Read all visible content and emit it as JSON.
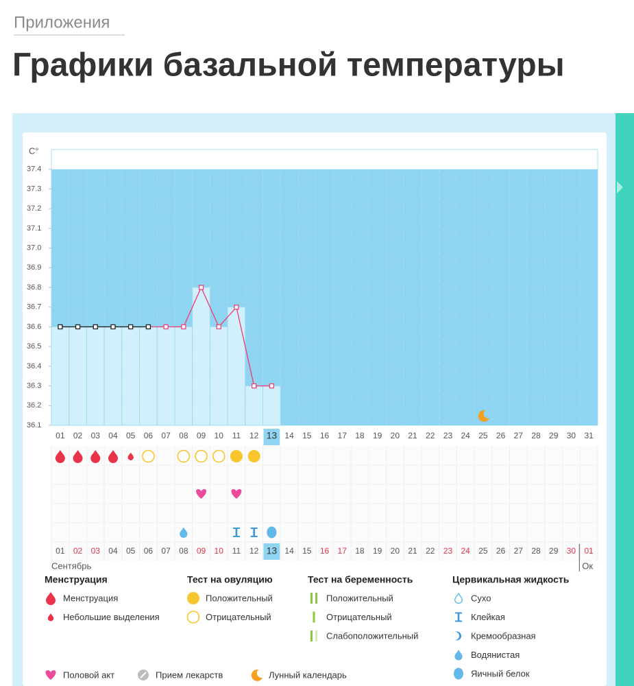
{
  "breadcrumb": "Приложения",
  "title": "Графики базальной температуры",
  "chart_data": {
    "type": "line",
    "y_unit": "C°",
    "categories": [
      "01",
      "02",
      "03",
      "04",
      "05",
      "06",
      "07",
      "08",
      "09",
      "10",
      "11",
      "12",
      "13",
      "14",
      "15",
      "16",
      "17",
      "18",
      "19",
      "20",
      "21",
      "22",
      "23",
      "24",
      "25",
      "26",
      "27",
      "28",
      "29",
      "30",
      "31"
    ],
    "values": [
      36.6,
      36.6,
      36.6,
      36.6,
      36.6,
      36.6,
      36.6,
      36.6,
      36.8,
      36.6,
      36.7,
      36.3,
      36.3,
      null,
      null,
      null,
      null,
      null,
      null,
      null,
      null,
      null,
      null,
      null,
      null,
      null,
      null,
      null,
      null,
      null,
      null
    ],
    "color": "#e8457a",
    "point_colors": [
      "#222222",
      "#222222",
      "#222222",
      "#222222",
      "#222222",
      "#222222",
      "#e8457a",
      "#e8457a",
      "#e8457a",
      "#e8457a",
      "#e8457a",
      "#e8457a",
      "#e8457a",
      null,
      null,
      null,
      null,
      null,
      null,
      null,
      null,
      null,
      null,
      null,
      null,
      null,
      null,
      null,
      null,
      null,
      null
    ],
    "ylim": [
      36.1,
      37.5
    ],
    "yticks": [
      36.1,
      36.2,
      36.3,
      36.4,
      36.5,
      36.6,
      36.7,
      36.8,
      36.9,
      {
        "value": 37,
        "label": "37.0"
      },
      37.1,
      37.2,
      37.3,
      37.4
    ],
    "grid": false,
    "today_index": 12,
    "rows": {
      "menstruation": [
        "drop",
        "drop",
        "drop",
        "drop",
        "small-drop",
        null,
        null,
        null,
        null,
        null,
        null,
        null,
        null,
        null,
        null,
        null,
        null,
        null,
        null,
        null,
        null,
        null,
        null,
        null,
        null,
        null,
        null,
        null,
        null,
        null,
        null
      ],
      "ovulation_test": [
        null,
        null,
        null,
        null,
        null,
        "circle-outline",
        null,
        "circle-outline",
        "circle-outline",
        "circle-outline",
        "circle-fill",
        "circle-fill",
        null,
        null,
        null,
        null,
        null,
        null,
        null,
        null,
        null,
        null,
        null,
        null,
        null,
        null,
        null,
        null,
        null,
        null,
        null
      ],
      "intercourse": [
        null,
        null,
        null,
        null,
        null,
        null,
        null,
        null,
        "heart",
        null,
        "heart",
        null,
        null,
        null,
        null,
        null,
        null,
        null,
        null,
        null,
        null,
        null,
        null,
        null,
        null,
        null,
        null,
        null,
        null,
        null,
        null
      ],
      "cervical_fluid": [
        null,
        null,
        null,
        null,
        null,
        null,
        null,
        "watery",
        null,
        null,
        "sticky",
        "sticky",
        "egg-white",
        null,
        null,
        null,
        null,
        null,
        null,
        null,
        null,
        null,
        null,
        null,
        null,
        null,
        null,
        null,
        null,
        null,
        null
      ],
      "lunar": [
        null,
        null,
        null,
        null,
        null,
        null,
        null,
        null,
        null,
        null,
        null,
        null,
        null,
        null,
        null,
        null,
        null,
        null,
        null,
        null,
        null,
        null,
        null,
        null,
        "moon",
        null,
        null,
        null,
        null,
        null,
        null
      ]
    },
    "bottom_days": [
      {
        "label": "01",
        "holiday": false
      },
      {
        "label": "02",
        "holiday": true
      },
      {
        "label": "03",
        "holiday": true
      },
      {
        "label": "04",
        "holiday": false
      },
      {
        "label": "05",
        "holiday": false
      },
      {
        "label": "06",
        "holiday": false
      },
      {
        "label": "07",
        "holiday": false
      },
      {
        "label": "08",
        "holiday": false
      },
      {
        "label": "09",
        "holiday": true
      },
      {
        "label": "10",
        "holiday": true
      },
      {
        "label": "11",
        "holiday": false
      },
      {
        "label": "12",
        "holiday": false
      },
      {
        "label": "13",
        "holiday": false
      },
      {
        "label": "14",
        "holiday": false
      },
      {
        "label": "15",
        "holiday": false
      },
      {
        "label": "16",
        "holiday": true
      },
      {
        "label": "17",
        "holiday": true
      },
      {
        "label": "18",
        "holiday": false
      },
      {
        "label": "19",
        "holiday": false
      },
      {
        "label": "20",
        "holiday": false
      },
      {
        "label": "21",
        "holiday": false
      },
      {
        "label": "22",
        "holiday": false
      },
      {
        "label": "23",
        "holiday": true
      },
      {
        "label": "24",
        "holiday": true
      },
      {
        "label": "25",
        "holiday": false
      },
      {
        "label": "26",
        "holiday": false
      },
      {
        "label": "27",
        "holiday": false
      },
      {
        "label": "28",
        "holiday": false
      },
      {
        "label": "29",
        "holiday": false
      },
      {
        "label": "30",
        "holiday": true
      },
      {
        "label": "01",
        "holiday": true
      }
    ],
    "months": [
      "Сентябрь",
      "Ок"
    ]
  },
  "legend": {
    "groups": [
      {
        "title": "Менструация",
        "items": [
          {
            "label": "Менструация",
            "icon": "drop"
          },
          {
            "label": "Небольшие выделения",
            "icon": "small-drop"
          }
        ]
      },
      {
        "title": "Тест на овуляцию",
        "items": [
          {
            "label": "Положительный",
            "icon": "circle-fill"
          },
          {
            "label": "Отрицательный",
            "icon": "circle-outline"
          }
        ]
      },
      {
        "title": "Тест на беременность",
        "items": [
          {
            "label": "Положительный",
            "icon": "two-bars"
          },
          {
            "label": "Отрицательный",
            "icon": "one-bar"
          },
          {
            "label": "Слабоположительный",
            "icon": "faint-bars"
          }
        ]
      },
      {
        "title": "Цервикальная жидкость",
        "items": [
          {
            "label": "Сухо",
            "icon": "dry"
          },
          {
            "label": "Клейкая",
            "icon": "sticky"
          },
          {
            "label": "Кремообразная",
            "icon": "creamy"
          },
          {
            "label": "Водянистая",
            "icon": "watery"
          },
          {
            "label": "Яичный белок",
            "icon": "egg-white"
          }
        ]
      }
    ],
    "other": [
      {
        "label": "Половой акт",
        "icon": "heart"
      },
      {
        "label": "Прием лекарств",
        "icon": "pill"
      },
      {
        "label": "Лунный календарь",
        "icon": "moon"
      }
    ]
  }
}
